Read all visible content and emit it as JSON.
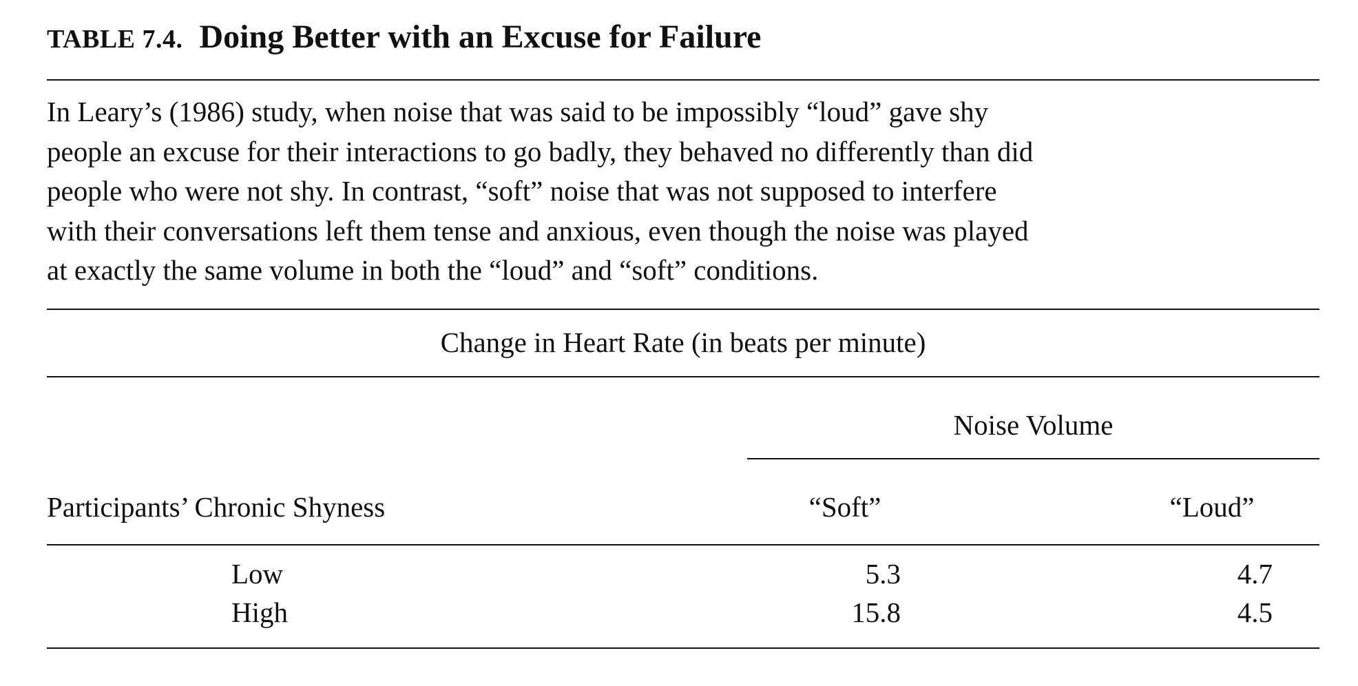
{
  "table": {
    "label": "TABLE 7.4.",
    "title": "Doing Better with an Excuse for Failure",
    "caption_lines": [
      "In Leary’s (1986) study, when noise that was said to be impossibly “loud” gave shy",
      "people an excuse for their interactions to go badly, they behaved no differently than did",
      "people who were not shy. In contrast, “soft” noise that was not supposed to interfere",
      "with their conversations left them tense and anxious, even though the noise was played",
      "at exactly the same volume in both the “loud” and “soft” conditions."
    ],
    "measure_heading": "Change in Heart Rate (in beats per minute)",
    "column_group_heading": "Noise Volume",
    "row_heading": "Participants’ Chronic Shyness",
    "columns": [
      "“Soft”",
      "“Loud”"
    ],
    "rows": [
      {
        "label": "Low",
        "values": [
          "5.3",
          "4.7"
        ]
      },
      {
        "label": "High",
        "values": [
          "15.8",
          "4.5"
        ]
      }
    ]
  }
}
